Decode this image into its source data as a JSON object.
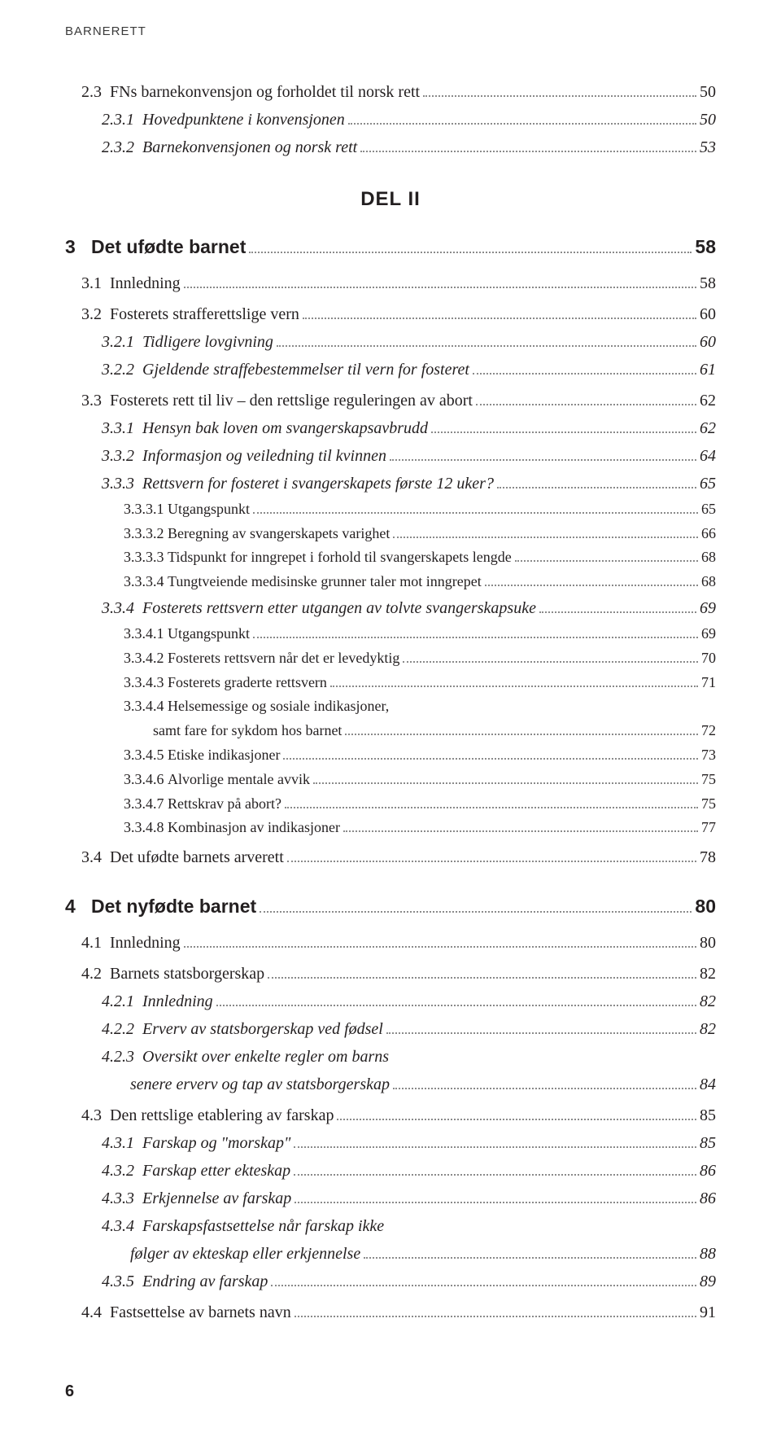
{
  "running_head": "BARNERETT",
  "part_heading": "DEL II",
  "page_number": "6",
  "style": {
    "font_body": "Georgia, serif",
    "font_heading": "Arial, sans-serif",
    "color_text": "#231f20",
    "color_leader": "#8a8a8a",
    "bg": "#ffffff",
    "fontsize_lvl1": 23,
    "fontsize_lvl2": 20,
    "fontsize_lvl3": 20,
    "fontsize_lvl4": 18,
    "indent_lvl1_ch": 0,
    "num_width_lvl1_ch": 4,
    "indent_lvl2_ch": 4,
    "num_width_lvl2_ch": 5,
    "indent_lvl3_ch": 9,
    "num_width_lvl3_ch": 7,
    "indent_lvl4_ch": 16,
    "num_width_lvl4_ch": 8
  },
  "entries": [
    {
      "level": 2,
      "num": "2.3",
      "title": "FNs barnekonvensjon og forholdet til norsk rett",
      "page": "50"
    },
    {
      "level": 3,
      "num": "2.3.1",
      "title": "Hovedpunktene i konvensjonen",
      "page": "50"
    },
    {
      "level": 3,
      "num": "2.3.2",
      "title": "Barnekonvensjonen og norsk rett",
      "page": "53"
    },
    {
      "type": "part"
    },
    {
      "level": 1,
      "num": "3",
      "title": "Det ufødte barnet",
      "page": "58"
    },
    {
      "level": 2,
      "num": "3.1",
      "title": "Innledning",
      "page": "58"
    },
    {
      "level": 2,
      "num": "3.2",
      "title": "Fosterets strafferettslige vern",
      "page": "60"
    },
    {
      "level": 3,
      "num": "3.2.1",
      "title": "Tidligere lovgivning",
      "page": "60"
    },
    {
      "level": 3,
      "num": "3.2.2",
      "title": "Gjeldende straffebestemmelser til vern for fosteret",
      "page": "61"
    },
    {
      "level": 2,
      "num": "3.3",
      "title": "Fosterets rett til liv – den rettslige reguleringen av abort",
      "page": "62"
    },
    {
      "level": 3,
      "num": "3.3.1",
      "title": "Hensyn bak loven om svangerskapsavbrudd",
      "page": "62"
    },
    {
      "level": 3,
      "num": "3.3.2",
      "title": "Informasjon og veiledning til kvinnen",
      "page": "64"
    },
    {
      "level": 3,
      "num": "3.3.3",
      "title": "Rettsvern for fosteret i svangerskapets første 12 uker?",
      "page": "65"
    },
    {
      "level": 4,
      "num": "3.3.3.1",
      "title": "Utgangspunkt",
      "page": "65"
    },
    {
      "level": 4,
      "num": "3.3.3.2",
      "title": "Beregning av svangerskapets varighet",
      "page": "66"
    },
    {
      "level": 4,
      "num": "3.3.3.3",
      "title": "Tidspunkt for inngrepet i forhold til svangerskapets lengde",
      "page": "68"
    },
    {
      "level": 4,
      "num": "3.3.3.4",
      "title": "Tungtveiende medisinske grunner taler mot inngrepet",
      "page": "68"
    },
    {
      "level": 3,
      "num": "3.3.4",
      "title": "Fosterets rettsvern etter utgangen av tolvte svangerskapsuke",
      "page": "69"
    },
    {
      "level": 4,
      "num": "3.3.4.1",
      "title": "Utgangspunkt",
      "page": "69"
    },
    {
      "level": 4,
      "num": "3.3.4.2",
      "title": "Fosterets rettsvern når det er levedyktig",
      "page": "70"
    },
    {
      "level": 4,
      "num": "3.3.4.3",
      "title": "Fosterets graderte rettsvern",
      "page": "71"
    },
    {
      "level": 4,
      "num": "3.3.4.4",
      "title": "Helsemessige og sosiale indikasjoner,",
      "cont": "samt fare for sykdom hos barnet",
      "page": "72"
    },
    {
      "level": 4,
      "num": "3.3.4.5",
      "title": "Etiske indikasjoner",
      "page": "73"
    },
    {
      "level": 4,
      "num": "3.3.4.6",
      "title": "Alvorlige mentale avvik",
      "page": "75"
    },
    {
      "level": 4,
      "num": "3.3.4.7",
      "title": "Rettskrav på abort?",
      "page": "75"
    },
    {
      "level": 4,
      "num": "3.3.4.8",
      "title": "Kombinasjon av indikasjoner",
      "page": "77"
    },
    {
      "level": 2,
      "num": "3.4",
      "title": "Det ufødte barnets arverett",
      "page": "78"
    },
    {
      "level": 1,
      "num": "4",
      "title": "Det nyfødte barnet",
      "page": "80"
    },
    {
      "level": 2,
      "num": "4.1",
      "title": "Innledning",
      "page": "80"
    },
    {
      "level": 2,
      "num": "4.2",
      "title": "Barnets statsborgerskap",
      "page": "82"
    },
    {
      "level": 3,
      "num": "4.2.1",
      "title": "Innledning",
      "page": "82"
    },
    {
      "level": 3,
      "num": "4.2.2",
      "title": "Erverv av statsborgerskap ved fødsel",
      "page": "82"
    },
    {
      "level": 3,
      "num": "4.2.3",
      "title": "Oversikt over enkelte regler om barns",
      "cont": "senere erverv og tap av statsborgerskap",
      "page": "84"
    },
    {
      "level": 2,
      "num": "4.3",
      "title": "Den rettslige etablering av farskap",
      "page": "85"
    },
    {
      "level": 3,
      "num": "4.3.1",
      "title": "Farskap og \"morskap\"",
      "page": "85"
    },
    {
      "level": 3,
      "num": "4.3.2",
      "title": "Farskap etter ekteskap",
      "page": "86"
    },
    {
      "level": 3,
      "num": "4.3.3",
      "title": "Erkjennelse av farskap",
      "page": "86"
    },
    {
      "level": 3,
      "num": "4.3.4",
      "title": "Farskapsfastsettelse når farskap ikke",
      "cont": "følger av ekteskap eller erkjennelse",
      "page": "88"
    },
    {
      "level": 3,
      "num": "4.3.5",
      "title": "Endring av farskap",
      "page": "89"
    },
    {
      "level": 2,
      "num": "4.4",
      "title": "Fastsettelse av barnets navn",
      "page": "91"
    }
  ]
}
